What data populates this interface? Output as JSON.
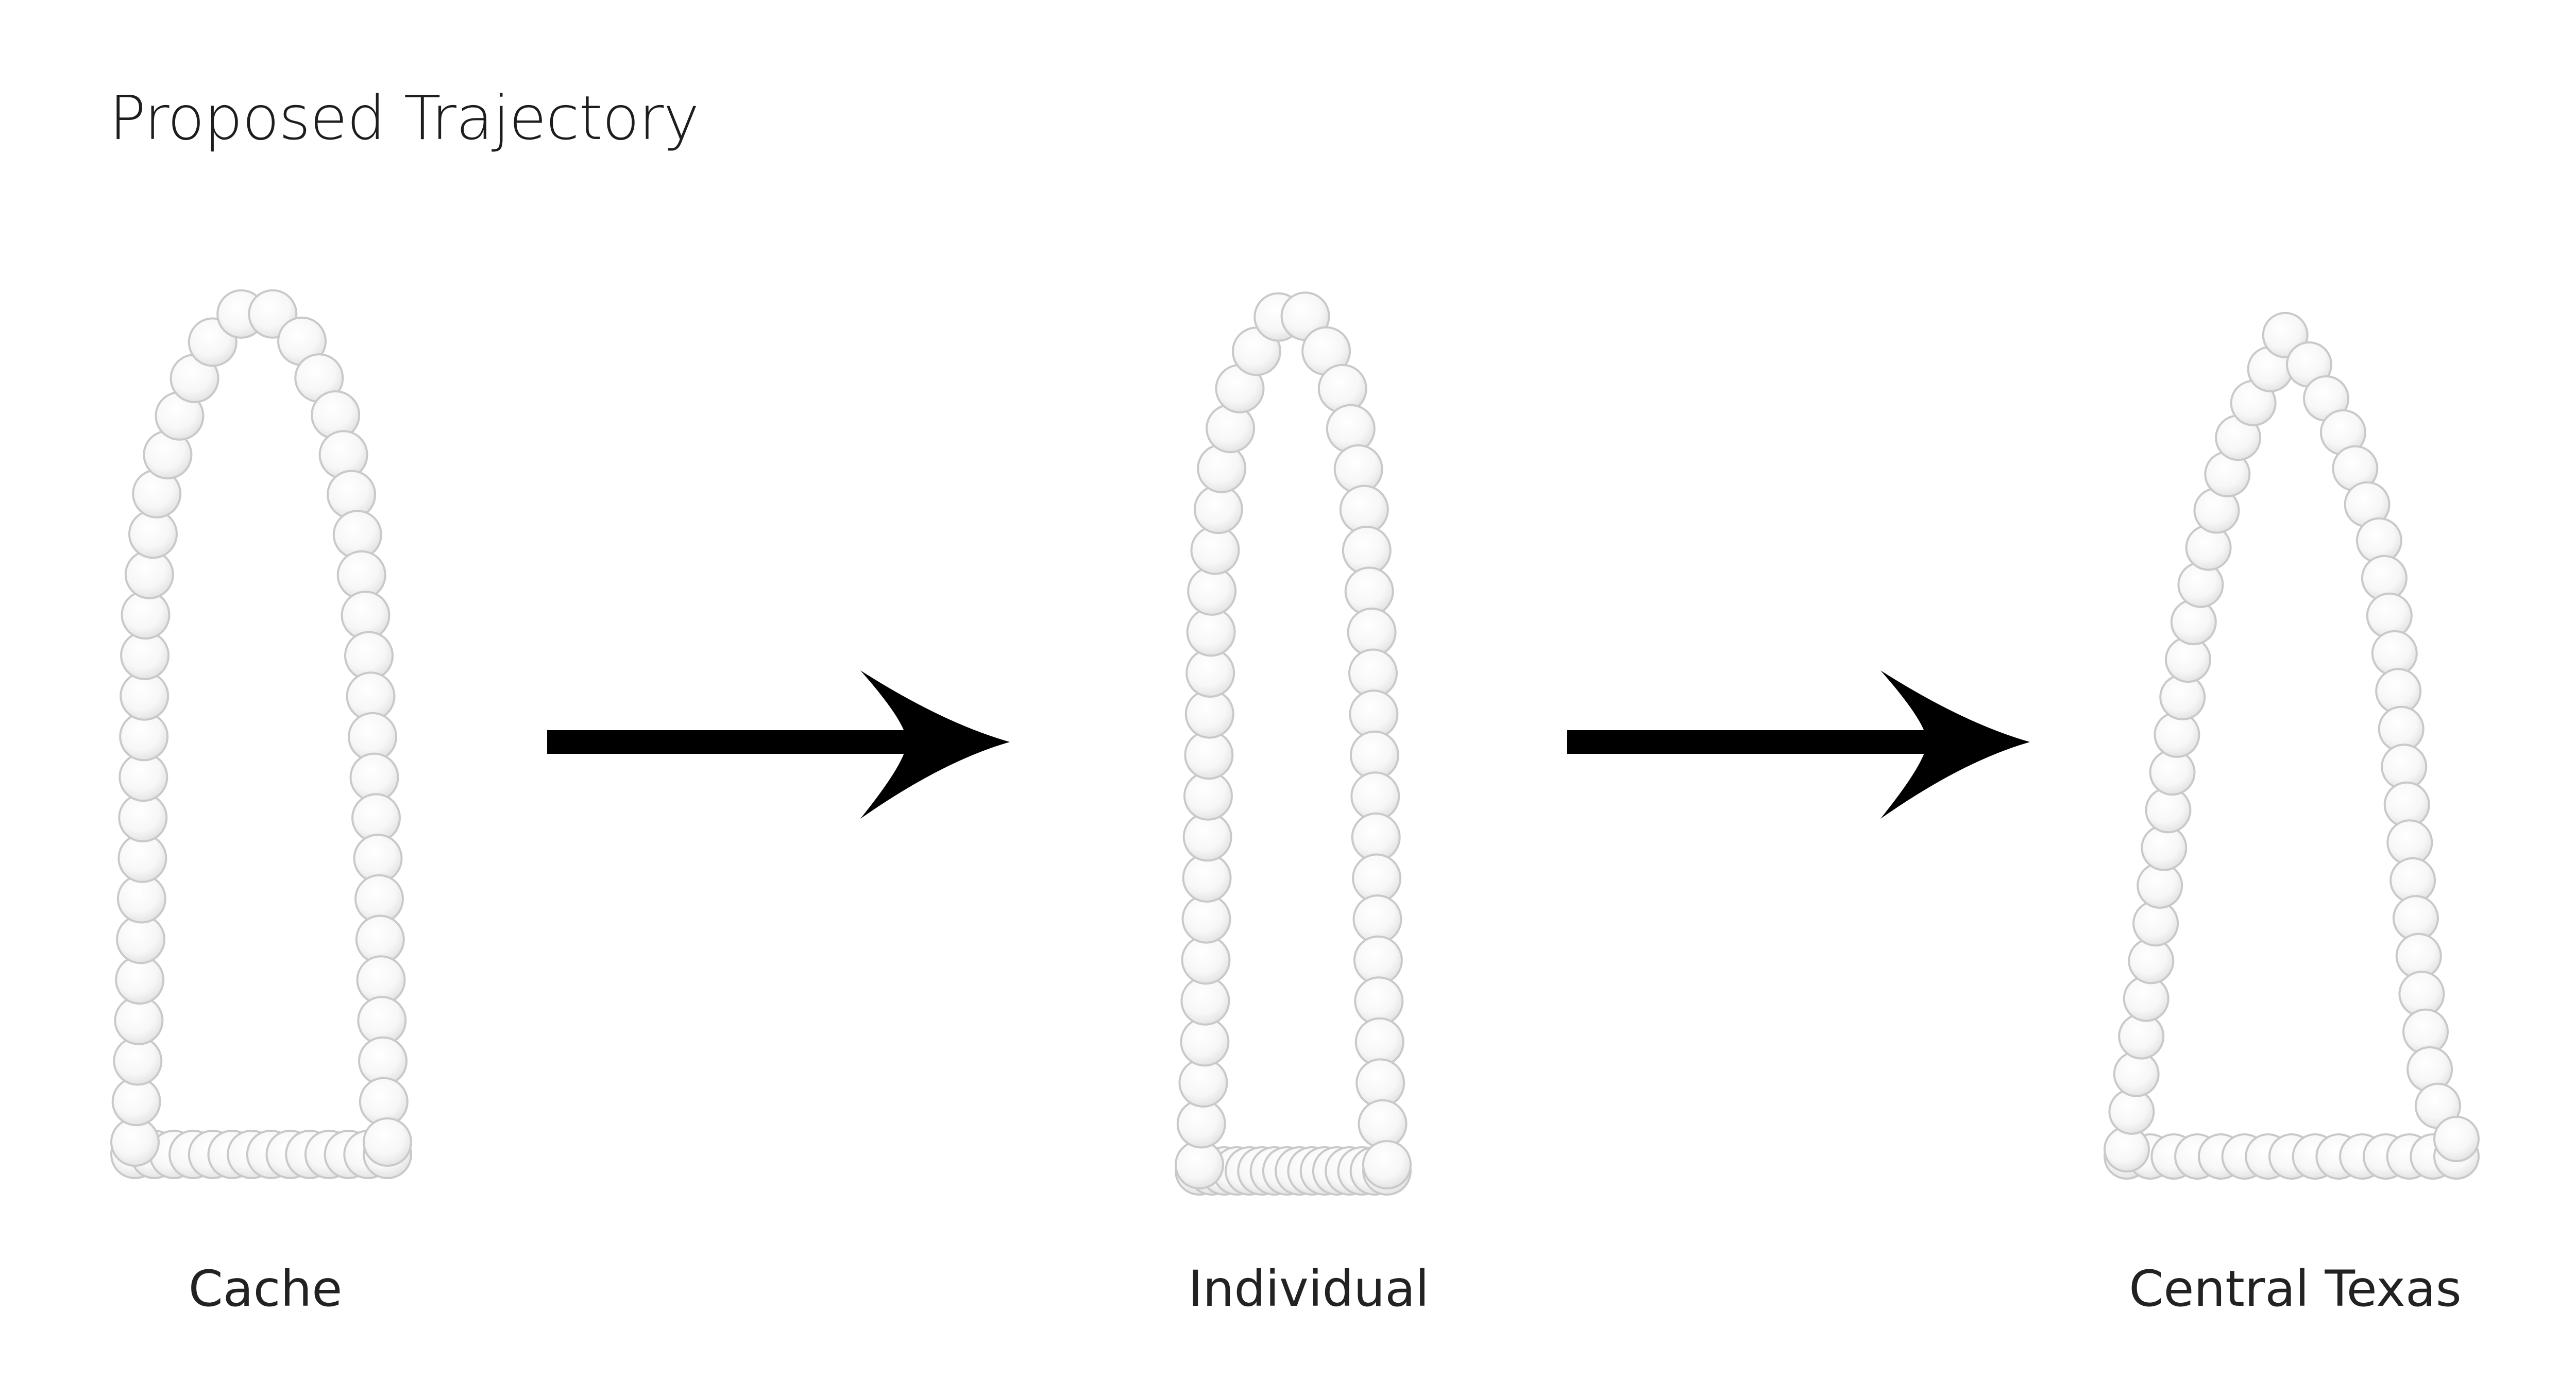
{
  "title": "Proposed Trajectory",
  "stages": [
    {
      "label": "Cache",
      "shape": "blunt-arch"
    },
    {
      "label": "Individual",
      "shape": "tall-bullet"
    },
    {
      "label": "Central Texas",
      "shape": "tapered-arch"
    }
  ],
  "connectors": [
    {
      "from": "Cache",
      "to": "Individual",
      "icon": "arrow-right-icon"
    },
    {
      "from": "Individual",
      "to": "Central Texas",
      "icon": "arrow-right-icon"
    }
  ],
  "colors": {
    "bead_fill": "#fbfbfb",
    "bead_stroke": "#c9c9c9",
    "arrow": "#000000",
    "text": "#1d1d1d",
    "background": "#ffffff"
  }
}
